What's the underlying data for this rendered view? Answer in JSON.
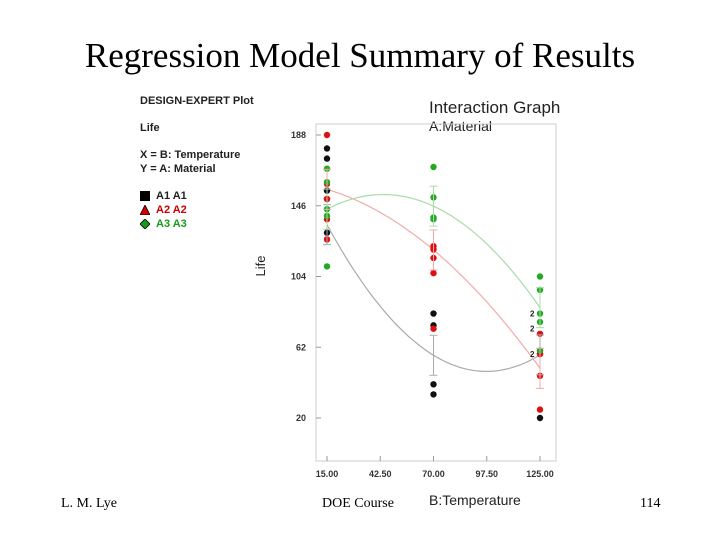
{
  "slide": {
    "title": "Regression Model Summary of Results",
    "footer_left": "L. M. Lye",
    "footer_center": "DOE Course",
    "page_number": "114"
  },
  "legend": {
    "heading": "DESIGN-EXPERT Plot",
    "response": "Life",
    "x_def": "X = B: Temperature",
    "y_def": "Y = A: Material",
    "entries": [
      {
        "label": "A1 A1",
        "color": "#000000",
        "marker": "square"
      },
      {
        "label": "A2 A2",
        "color": "#cc0000",
        "marker": "triangle"
      },
      {
        "label": "A3 A3",
        "color": "#1a9a1a",
        "marker": "diamond"
      }
    ]
  },
  "colors": {
    "A1": "#111111",
    "A2": "#dd1111",
    "A3": "#22aa22",
    "A1_curve": "#aaaaaa",
    "A2_curve": "#f2aaaa",
    "A3_curve": "#a9dca9"
  },
  "chart_data": {
    "type": "scatter",
    "title": "Interaction Graph",
    "subtitle": "A:Material",
    "xlabel": "B:Temperature",
    "ylabel": "Life",
    "xlim": [
      15,
      125
    ],
    "ylim": [
      20,
      188
    ],
    "xticks": [
      "15.00",
      "42.50",
      "70.00",
      "97.50",
      "125.00"
    ],
    "yticks": [
      "20",
      "62",
      "104",
      "146",
      "188"
    ],
    "grid": false,
    "series": [
      {
        "name": "A1",
        "x": [
          15,
          15,
          15,
          15,
          15,
          70,
          70,
          70,
          70,
          125,
          125
        ],
        "y": [
          180,
          174,
          155,
          150,
          130,
          82,
          75,
          40,
          34,
          58,
          20
        ]
      },
      {
        "name": "A2",
        "x": [
          15,
          15,
          15,
          15,
          15,
          70,
          70,
          70,
          70,
          70,
          125,
          125,
          125,
          125,
          125
        ],
        "y": [
          188,
          159,
          150,
          138,
          126,
          122,
          120,
          115,
          106,
          73,
          70,
          60,
          58,
          45,
          25
        ]
      },
      {
        "name": "A3",
        "x": [
          15,
          15,
          15,
          15,
          15,
          70,
          70,
          70,
          70,
          125,
          125,
          125,
          125,
          125
        ],
        "y": [
          168,
          160,
          144,
          140,
          110,
          169,
          151,
          139,
          138,
          104,
          96,
          82,
          77,
          60
        ]
      }
    ],
    "fitted_curves": [
      {
        "name": "A1",
        "x": [
          15,
          70,
          125
        ],
        "y": [
          134.75,
          57.25,
          57.5
        ]
      },
      {
        "name": "A2",
        "x": [
          15,
          70,
          125
        ],
        "y": [
          155.75,
          119.75,
          49.5
        ]
      },
      {
        "name": "A3",
        "x": [
          15,
          70,
          125
        ],
        "y": [
          144.0,
          145.75,
          85.5
        ]
      }
    ],
    "overlap_marker_label": "2"
  }
}
